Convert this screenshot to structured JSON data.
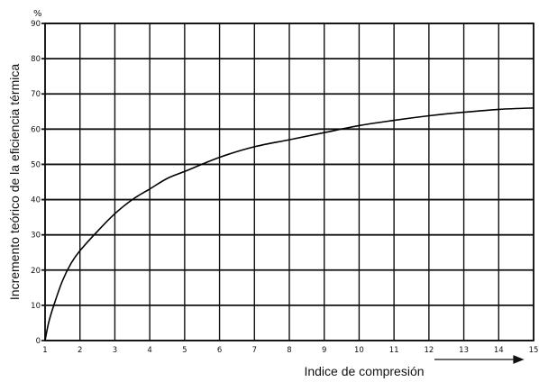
{
  "chart_data": {
    "type": "line",
    "title": "",
    "xlabel": "Indice de compresión",
    "ylabel": "Incremento teórico de la eficiencia térmica",
    "y_unit": "%",
    "xlim": [
      1,
      15
    ],
    "ylim": [
      0,
      90
    ],
    "x_ticks": [
      "1",
      "2",
      "3",
      "4",
      "5",
      "6",
      "7",
      "8",
      "9",
      "10",
      "11",
      "12",
      "13",
      "14",
      "15"
    ],
    "y_ticks": [
      "0",
      "10",
      "20",
      "30",
      "40",
      "50",
      "60",
      "70",
      "80",
      "90"
    ],
    "grid": true,
    "series": [
      {
        "x": [
          1,
          1.1,
          1.25,
          1.5,
          1.75,
          2,
          2.5,
          3,
          3.5,
          4,
          4.5,
          5,
          6,
          7,
          8,
          9,
          10,
          11,
          12,
          13,
          14,
          15
        ],
        "y": [
          0,
          5,
          10,
          17,
          22,
          25.5,
          31,
          36,
          40,
          43,
          46,
          48,
          52,
          55,
          57,
          59,
          61,
          62.5,
          63.8,
          64.8,
          65.6,
          66
        ]
      }
    ]
  }
}
